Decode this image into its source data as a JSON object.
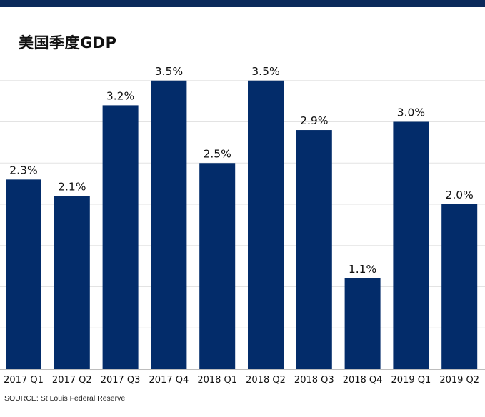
{
  "colors": {
    "bar": "#032c6a",
    "top_bar": "#0b2a5b",
    "grid": "#e3e3e3",
    "text": "#111111"
  },
  "chart_data": {
    "type": "bar",
    "title": "美国季度GDP",
    "categories": [
      "2017 Q1",
      "2017 Q2",
      "2017 Q3",
      "2017 Q4",
      "2018 Q1",
      "2018 Q2",
      "2018 Q3",
      "2018 Q4",
      "2019 Q1",
      "2019 Q2"
    ],
    "values": [
      2.3,
      2.1,
      3.2,
      3.5,
      2.5,
      3.5,
      2.9,
      1.1,
      3.0,
      2.0
    ],
    "data_labels": [
      "2.3%",
      "2.1%",
      "3.2%",
      "3.5%",
      "2.5%",
      "3.5%",
      "2.9%",
      "1.1%",
      "3.0%",
      "2.0%"
    ],
    "xlabel": "",
    "ylabel": "",
    "ylim": [
      0,
      4
    ],
    "grid": true,
    "legend": "none"
  },
  "source_text": "SOURCE: St Louis Federal Reserve"
}
